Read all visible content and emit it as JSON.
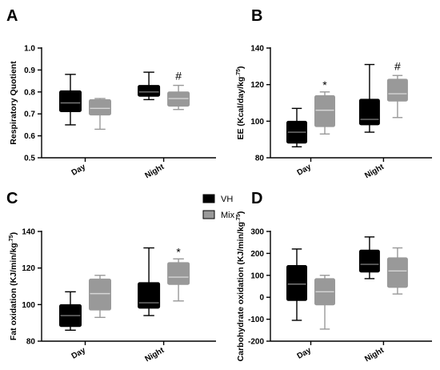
{
  "colors": {
    "VH": "#000000",
    "Mix": "#999999",
    "VH_median": "#777777",
    "Mix_median": "#d6d6d6"
  },
  "legend": {
    "position": "center",
    "entries": [
      {
        "name": "VH",
        "color": "#000000"
      },
      {
        "name": "Mix",
        "color": "#999999"
      }
    ]
  },
  "chart_data": [
    {
      "panel": "A",
      "type": "box",
      "ylabel": "Respiratory Quotient",
      "ylim": [
        0.5,
        1.0
      ],
      "yticks": [
        0.5,
        0.6,
        0.7,
        0.8,
        0.9,
        1.0
      ],
      "ytick_labels": [
        "0.5",
        "0.6",
        "0.7",
        "0.8",
        "0.9",
        "1.0"
      ],
      "categories": [
        "Day",
        "Night"
      ],
      "series": [
        {
          "name": "VH",
          "boxes": [
            {
              "min": 0.65,
              "q1": 0.71,
              "median": 0.75,
              "q3": 0.805,
              "max": 0.88
            },
            {
              "min": 0.765,
              "q1": 0.78,
              "median": 0.8,
              "q3": 0.83,
              "max": 0.89
            }
          ]
        },
        {
          "name": "Mix",
          "boxes": [
            {
              "min": 0.63,
              "q1": 0.695,
              "median": 0.725,
              "q3": 0.765,
              "max": 0.77
            },
            {
              "min": 0.72,
              "q1": 0.735,
              "median": 0.77,
              "q3": 0.8,
              "max": 0.83
            }
          ]
        }
      ],
      "annotations": [
        {
          "text": "#",
          "category": "Night",
          "series": "Mix"
        }
      ]
    },
    {
      "panel": "B",
      "type": "box",
      "ylabel": "EE (Kcal/day/kg",
      "ylabel_sup": ".75",
      "ylabel_end": ")",
      "ylim": [
        80,
        140
      ],
      "yticks": [
        80,
        100,
        120,
        140
      ],
      "ytick_labels": [
        "80",
        "100",
        "120",
        "140"
      ],
      "categories": [
        "Day",
        "Night"
      ],
      "series": [
        {
          "name": "VH",
          "boxes": [
            {
              "min": 86,
              "q1": 88,
              "median": 94,
              "q3": 100,
              "max": 107
            },
            {
              "min": 94,
              "q1": 98,
              "median": 101,
              "q3": 112,
              "max": 131
            }
          ]
        },
        {
          "name": "Mix",
          "boxes": [
            {
              "min": 93,
              "q1": 97,
              "median": 106,
              "q3": 114,
              "max": 116
            },
            {
              "min": 102,
              "q1": 111,
              "median": 115,
              "q3": 123,
              "max": 125
            }
          ]
        }
      ],
      "annotations": [
        {
          "text": "*",
          "category": "Day",
          "series": "Mix"
        },
        {
          "text": "#",
          "category": "Night",
          "series": "Mix"
        }
      ]
    },
    {
      "panel": "C",
      "type": "box",
      "ylabel": "Fat oxidation (KJ/min/kg",
      "ylabel_sup": ".75",
      "ylabel_end": ")",
      "ylim": [
        80,
        140
      ],
      "yticks": [
        80,
        100,
        120,
        140
      ],
      "ytick_labels": [
        "80",
        "100",
        "120",
        "140"
      ],
      "categories": [
        "Day",
        "Night"
      ],
      "series": [
        {
          "name": "VH",
          "boxes": [
            {
              "min": 86,
              "q1": 88,
              "median": 94,
              "q3": 100,
              "max": 107
            },
            {
              "min": 94,
              "q1": 98,
              "median": 101,
              "q3": 112,
              "max": 131
            }
          ]
        },
        {
          "name": "Mix",
          "boxes": [
            {
              "min": 93,
              "q1": 97,
              "median": 106,
              "q3": 114,
              "max": 116
            },
            {
              "min": 102,
              "q1": 111,
              "median": 115,
              "q3": 123,
              "max": 125
            }
          ]
        }
      ],
      "annotations": [
        {
          "text": "*",
          "category": "Night",
          "series": "Mix"
        }
      ]
    },
    {
      "panel": "D",
      "type": "box",
      "ylabel": "Carbohydrate oxidation (KJ/min/kg",
      "ylabel_sup": ".75",
      "ylabel_end": ")",
      "ylim": [
        -200,
        300
      ],
      "yticks": [
        -200,
        -100,
        0,
        100,
        200,
        300
      ],
      "ytick_labels": [
        "-200",
        "-100",
        "0",
        "100",
        "200",
        "300"
      ],
      "categories": [
        "Day",
        "Night"
      ],
      "series": [
        {
          "name": "VH",
          "boxes": [
            {
              "min": -105,
              "q1": -15,
              "median": 60,
              "q3": 145,
              "max": 220
            },
            {
              "min": 85,
              "q1": 115,
              "median": 150,
              "q3": 215,
              "max": 275
            }
          ]
        },
        {
          "name": "Mix",
          "boxes": [
            {
              "min": -145,
              "q1": -35,
              "median": 25,
              "q3": 85,
              "max": 100
            },
            {
              "min": 15,
              "q1": 45,
              "median": 120,
              "q3": 180,
              "max": 225
            }
          ]
        }
      ],
      "annotations": []
    }
  ]
}
